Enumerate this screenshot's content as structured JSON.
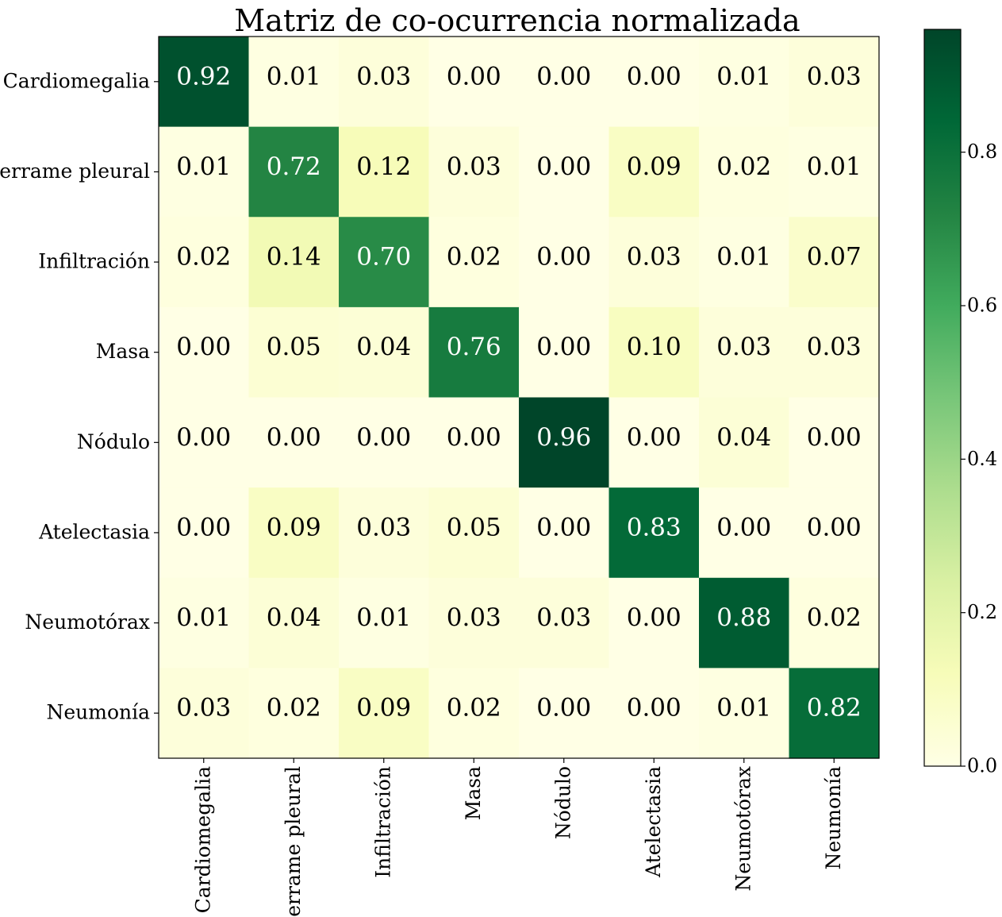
{
  "chart_data": {
    "type": "heatmap",
    "title": "Matriz de co-ocurrencia normalizada",
    "row_labels": [
      "Cardiomegalia",
      "Derrame pleural",
      "Infiltración",
      "Masa",
      "Nódulo",
      "Atelectasia",
      "Neumotórax",
      "Neumonía"
    ],
    "col_labels": [
      "Cardiomegalia",
      "Derrame pleural",
      "Infiltración",
      "Masa",
      "Nódulo",
      "Atelectasia",
      "Neumotórax",
      "Neumonía"
    ],
    "values": [
      [
        0.92,
        0.01,
        0.03,
        0.0,
        0.0,
        0.0,
        0.01,
        0.03
      ],
      [
        0.01,
        0.72,
        0.12,
        0.03,
        0.0,
        0.09,
        0.02,
        0.01
      ],
      [
        0.02,
        0.14,
        0.7,
        0.02,
        0.0,
        0.03,
        0.01,
        0.07
      ],
      [
        0.0,
        0.05,
        0.04,
        0.76,
        0.0,
        0.1,
        0.03,
        0.03
      ],
      [
        0.0,
        0.0,
        0.0,
        0.0,
        0.96,
        0.0,
        0.04,
        0.0
      ],
      [
        0.0,
        0.09,
        0.03,
        0.05,
        0.0,
        0.83,
        0.0,
        0.0
      ],
      [
        0.01,
        0.04,
        0.01,
        0.03,
        0.03,
        0.0,
        0.88,
        0.02
      ],
      [
        0.03,
        0.02,
        0.09,
        0.02,
        0.0,
        0.0,
        0.01,
        0.82
      ]
    ],
    "value_format": "0.00",
    "colormap": "YlGn",
    "colormap_stops": [
      "#ffffe5",
      "#f7fcb9",
      "#d9f0a3",
      "#addd8e",
      "#78c679",
      "#41ab5d",
      "#238443",
      "#006837",
      "#004529"
    ],
    "text_color_dark": "#000000",
    "text_color_light": "#ffffff",
    "colorbar": {
      "range": [
        0.0,
        0.96
      ],
      "ticks": [
        0.0,
        0.2,
        0.4,
        0.6,
        0.8
      ],
      "tick_labels": [
        "0.0",
        "0.2",
        "0.4",
        "0.6",
        "0.8"
      ]
    },
    "grid": false
  }
}
